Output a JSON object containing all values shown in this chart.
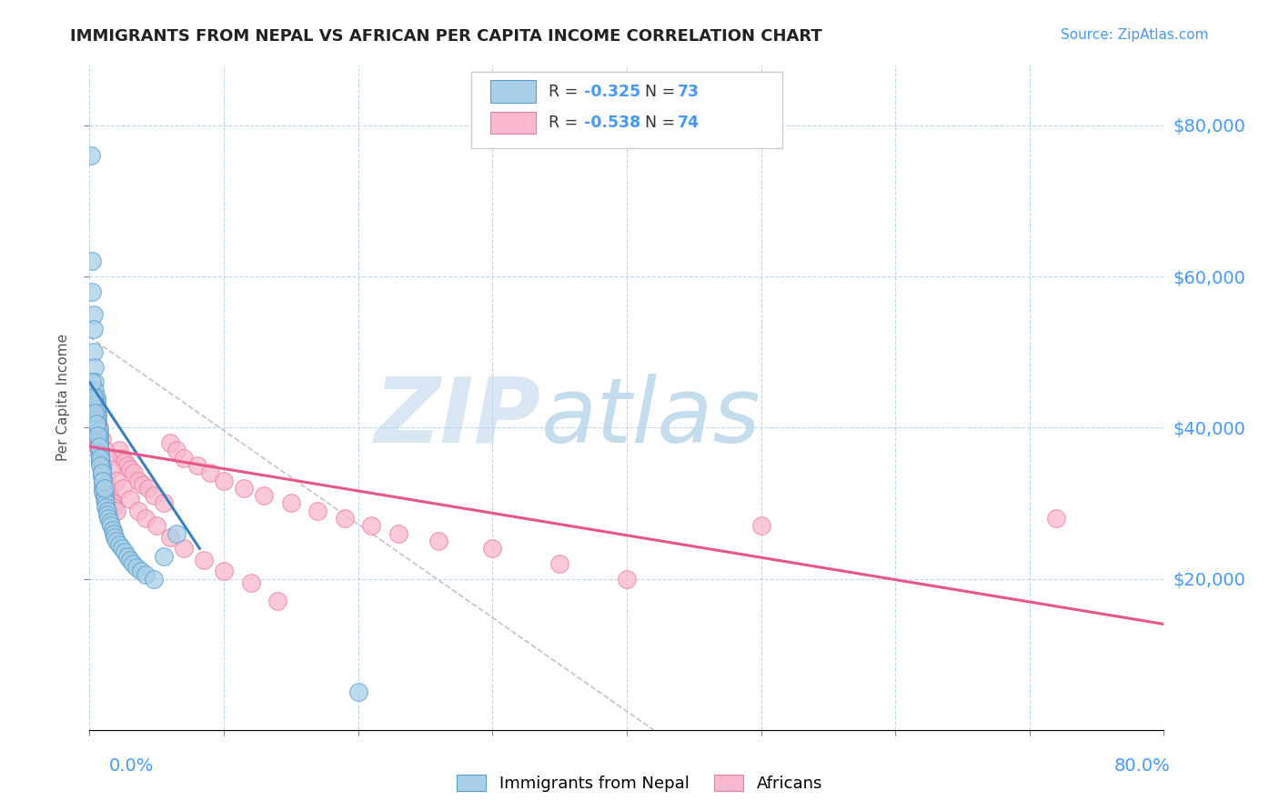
{
  "title": "IMMIGRANTS FROM NEPAL VS AFRICAN PER CAPITA INCOME CORRELATION CHART",
  "source": "Source: ZipAtlas.com",
  "ylabel": "Per Capita Income",
  "y_tick_labels": [
    "$20,000",
    "$40,000",
    "$60,000",
    "$80,000"
  ],
  "y_tick_values": [
    20000,
    40000,
    60000,
    80000
  ],
  "xlim": [
    0.0,
    0.8
  ],
  "ylim": [
    0,
    88000
  ],
  "color_nepal": "#a8cfe8",
  "color_africa": "#f9b8cc",
  "color_nepal_edge": "#5b9ec9",
  "color_africa_edge": "#e87fa3",
  "color_nepal_line": "#3a7fbf",
  "color_africa_line": "#e8558a",
  "watermark_zip": "ZIP",
  "watermark_atlas": "atlas",
  "nepal_x": [
    0.001,
    0.002,
    0.002,
    0.003,
    0.003,
    0.003,
    0.004,
    0.004,
    0.004,
    0.005,
    0.005,
    0.005,
    0.005,
    0.006,
    0.006,
    0.006,
    0.006,
    0.006,
    0.007,
    0.007,
    0.007,
    0.007,
    0.007,
    0.008,
    0.008,
    0.008,
    0.008,
    0.009,
    0.009,
    0.009,
    0.009,
    0.01,
    0.01,
    0.01,
    0.01,
    0.011,
    0.011,
    0.012,
    0.012,
    0.013,
    0.013,
    0.014,
    0.015,
    0.016,
    0.017,
    0.018,
    0.019,
    0.02,
    0.022,
    0.024,
    0.026,
    0.028,
    0.03,
    0.032,
    0.035,
    0.038,
    0.042,
    0.048,
    0.055,
    0.065,
    0.002,
    0.003,
    0.004,
    0.005,
    0.006,
    0.007,
    0.008,
    0.008,
    0.009,
    0.01,
    0.011,
    0.2
  ],
  "nepal_y": [
    76000,
    62000,
    58000,
    55000,
    53000,
    50000,
    48000,
    46000,
    45000,
    44000,
    43500,
    43000,
    42500,
    42000,
    41500,
    41000,
    40500,
    40000,
    39500,
    39000,
    38500,
    38000,
    37500,
    37000,
    36500,
    36000,
    35500,
    35000,
    34500,
    34000,
    33500,
    33000,
    32500,
    32000,
    31500,
    31000,
    30500,
    30000,
    29500,
    29000,
    28500,
    28000,
    27500,
    27000,
    26500,
    26000,
    25500,
    25000,
    24500,
    24000,
    23500,
    23000,
    22500,
    22000,
    21500,
    21000,
    20500,
    20000,
    23000,
    26000,
    46000,
    44000,
    42000,
    40500,
    39000,
    37500,
    36000,
    35000,
    34000,
    33000,
    32000,
    5000
  ],
  "africa_x": [
    0.001,
    0.002,
    0.003,
    0.004,
    0.004,
    0.005,
    0.005,
    0.006,
    0.006,
    0.007,
    0.007,
    0.008,
    0.008,
    0.009,
    0.009,
    0.01,
    0.01,
    0.011,
    0.012,
    0.013,
    0.014,
    0.015,
    0.016,
    0.017,
    0.018,
    0.02,
    0.022,
    0.024,
    0.026,
    0.028,
    0.03,
    0.033,
    0.036,
    0.04,
    0.044,
    0.048,
    0.055,
    0.06,
    0.065,
    0.07,
    0.08,
    0.09,
    0.1,
    0.115,
    0.13,
    0.15,
    0.17,
    0.19,
    0.21,
    0.23,
    0.26,
    0.3,
    0.35,
    0.4,
    0.005,
    0.007,
    0.009,
    0.011,
    0.013,
    0.016,
    0.02,
    0.025,
    0.03,
    0.036,
    0.042,
    0.05,
    0.06,
    0.07,
    0.085,
    0.1,
    0.12,
    0.14,
    0.5,
    0.72
  ],
  "africa_y": [
    43000,
    41500,
    40500,
    40000,
    39500,
    39000,
    38500,
    38000,
    37500,
    37000,
    36500,
    36000,
    35500,
    35000,
    34500,
    34000,
    33500,
    33000,
    32500,
    32000,
    31500,
    31000,
    30500,
    30000,
    29500,
    29000,
    37000,
    36000,
    35500,
    35000,
    34500,
    34000,
    33000,
    32500,
    32000,
    31000,
    30000,
    38000,
    37000,
    36000,
    35000,
    34000,
    33000,
    32000,
    31000,
    30000,
    29000,
    28000,
    27000,
    26000,
    25000,
    24000,
    22000,
    20000,
    42000,
    40000,
    38500,
    37000,
    36000,
    34500,
    33000,
    32000,
    30500,
    29000,
    28000,
    27000,
    25500,
    24000,
    22500,
    21000,
    19500,
    17000,
    27000,
    28000
  ]
}
